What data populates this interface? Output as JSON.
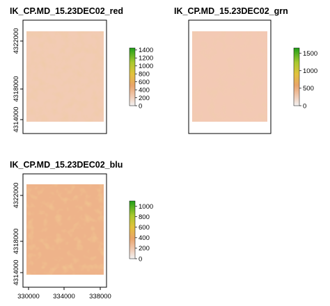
{
  "chart_data": [
    {
      "type": "heatmap",
      "title": "IK_CP.MD_15.23DEC02_red",
      "xlabel": "",
      "ylabel": "",
      "x_ticks": [],
      "y_ticks": [
        4314000,
        4318000,
        4322000
      ],
      "xlim": [
        329000,
        339000
      ],
      "ylim": [
        4313000,
        4324600
      ],
      "legend": {
        "placement": "right",
        "ticks": [
          0,
          200,
          400,
          600,
          800,
          1000,
          1200,
          1400
        ],
        "range": [
          0,
          1450
        ]
      },
      "colors": {
        "fill": "#f2cbb4",
        "low": "#f2f2f2",
        "mid": "#e8a463",
        "high": "#1f9e18"
      }
    },
    {
      "type": "heatmap",
      "title": "IK_CP.MD_15.23DEC02_grn",
      "xlabel": "",
      "ylabel": "",
      "x_ticks": [],
      "y_ticks": [],
      "xlim": [
        329000,
        339000
      ],
      "ylim": [
        4313000,
        4324600
      ],
      "legend": {
        "placement": "right",
        "ticks": [
          0,
          500,
          1000,
          1500
        ],
        "range": [
          0,
          1650
        ]
      },
      "colors": {
        "fill": "#f3c9b4",
        "low": "#f2f2f2",
        "mid": "#e8a463",
        "high": "#1f9e18"
      }
    },
    {
      "type": "heatmap",
      "title": "IK_CP.MD_15.23DEC02_blu",
      "xlabel": "",
      "ylabel": "",
      "x_ticks": [
        330000,
        334000,
        338000
      ],
      "y_ticks": [
        4314000,
        4318000,
        4322000
      ],
      "xlim": [
        329000,
        339000
      ],
      "ylim": [
        4313000,
        4324600
      ],
      "legend": {
        "placement": "right",
        "ticks": [
          0,
          200,
          400,
          600,
          800,
          1000
        ],
        "range": [
          0,
          1100
        ]
      },
      "colors": {
        "fill": "#eeb38a",
        "low": "#f2f2f2",
        "mid": "#e8a463",
        "high": "#1f9e18"
      }
    }
  ]
}
